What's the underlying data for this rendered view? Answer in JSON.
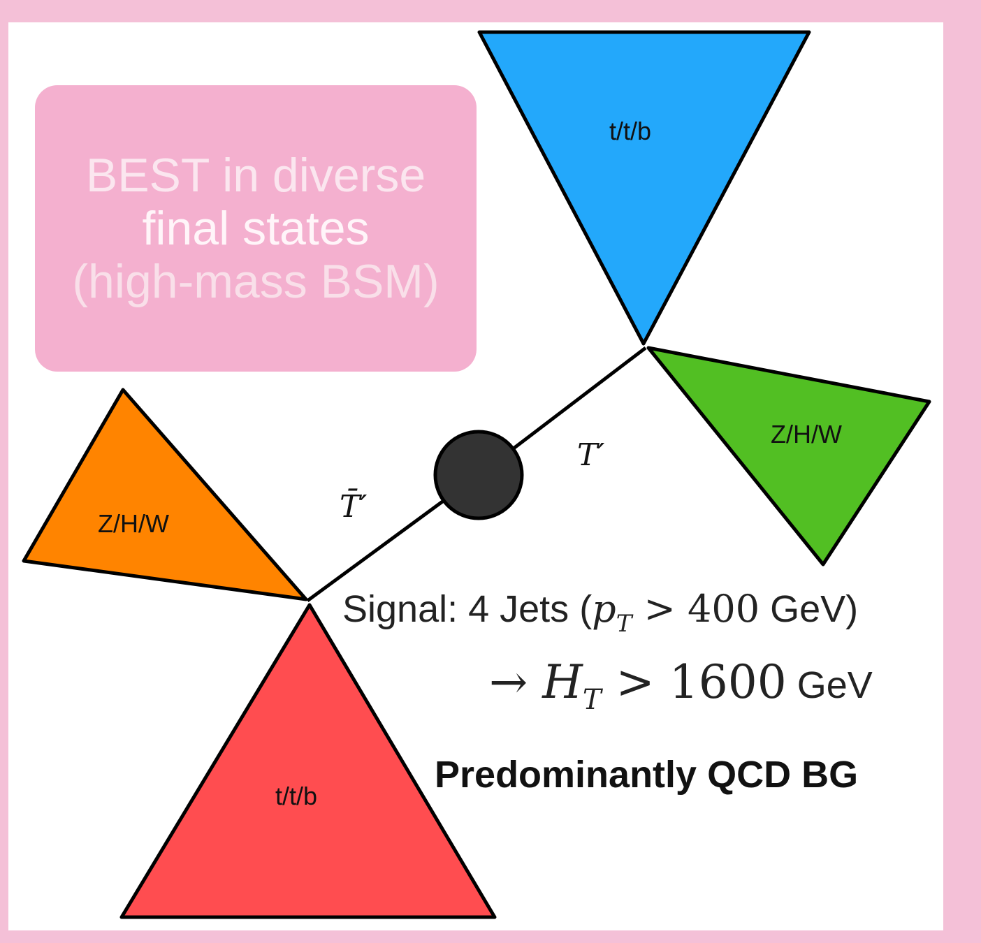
{
  "title_box": {
    "line1": "BEST in diverse",
    "line2": "final states",
    "line3": "(high-mass BSM)"
  },
  "diagram": {
    "jets": {
      "top_blue": "t/t/b",
      "right_green": "Z/H/W",
      "left_orange": "Z/H/W",
      "bottom_red": "t/t/b"
    },
    "particles": {
      "t_prime": "T′",
      "t_prime_bar": "T̄′"
    }
  },
  "signal": {
    "prefix": "Signal: 4 Jets (",
    "pt_symbol": "p",
    "pt_sub": "T",
    "gt": " > ",
    "pt_value": "400",
    "suffix": " GeV)"
  },
  "ht": {
    "arrow": "→ ",
    "symbol": "H",
    "sub": "T",
    "gt": " > ",
    "value": "1600",
    "unit": " GeV"
  },
  "background_note": "Predominantly QCD BG",
  "colors": {
    "frame": "#f4c0d7",
    "title_box": "#f4b0cf",
    "jet_blue": "#23a8fb",
    "jet_green": "#52bf23",
    "jet_orange": "#ff8400",
    "jet_red": "#ff4d50",
    "vertex": "#333333"
  }
}
